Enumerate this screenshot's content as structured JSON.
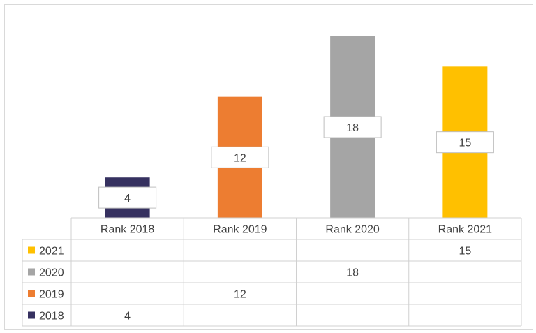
{
  "chart_data": {
    "type": "bar",
    "categories": [
      "Rank 2018",
      "Rank 2019",
      "Rank 2020",
      "Rank 2021"
    ],
    "series": [
      {
        "name": "2018",
        "values": [
          4,
          null,
          null,
          null
        ],
        "color": "#363160"
      },
      {
        "name": "2019",
        "values": [
          null,
          12,
          null,
          null
        ],
        "color": "#ED7D31"
      },
      {
        "name": "2020",
        "values": [
          null,
          null,
          18,
          null
        ],
        "color": "#A5A5A5"
      },
      {
        "name": "2021",
        "values": [
          null,
          null,
          null,
          15
        ],
        "color": "#FFC000"
      }
    ],
    "stacked": true,
    "data_table": true,
    "legend_in_table": true,
    "grid": false,
    "ylim": [
      0,
      18
    ]
  }
}
